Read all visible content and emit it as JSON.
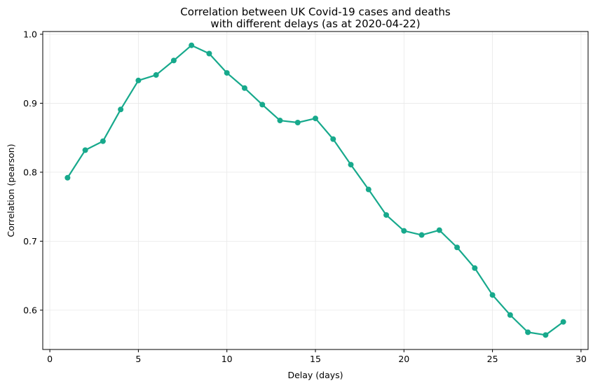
{
  "chart_data": {
    "type": "line",
    "title_lines": [
      "Correlation between UK Covid-19 cases and deaths",
      "with different delays (as at 2020-04-22)"
    ],
    "xlabel": "Delay (days)",
    "ylabel": "Correlation (pearson)",
    "x_ticks": [
      0,
      5,
      10,
      15,
      20,
      25,
      30
    ],
    "y_ticks": [
      0.6,
      0.7,
      0.8,
      0.9,
      1.0
    ],
    "x_tick_labels": [
      "0",
      "5",
      "10",
      "15",
      "20",
      "25",
      "30"
    ],
    "y_tick_labels": [
      "0.6",
      "0.7",
      "0.8",
      "0.9",
      "1.0"
    ],
    "xlim": [
      -0.4,
      30.4
    ],
    "ylim": [
      0.543,
      1.004
    ],
    "grid": true,
    "color": "#17a98c",
    "series": [
      {
        "x": [
          1,
          2,
          3,
          4,
          5,
          6,
          7,
          8,
          9,
          10,
          11,
          12,
          13,
          14,
          15,
          16,
          17,
          18,
          19,
          20,
          21,
          22,
          23,
          24,
          25,
          26,
          27,
          28,
          29
        ],
        "values": [
          0.792,
          0.832,
          0.845,
          0.891,
          0.933,
          0.941,
          0.962,
          0.984,
          0.972,
          0.944,
          0.922,
          0.898,
          0.875,
          0.872,
          0.878,
          0.848,
          0.811,
          0.775,
          0.738,
          0.715,
          0.709,
          0.716,
          0.691,
          0.661,
          0.622,
          0.593,
          0.568,
          0.564,
          0.583
        ]
      }
    ]
  }
}
